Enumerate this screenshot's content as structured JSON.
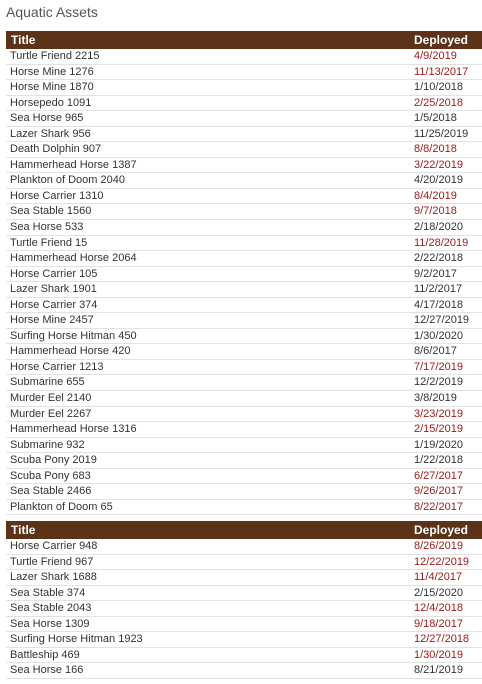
{
  "page": {
    "title": "Aquatic Assets"
  },
  "columns": {
    "title": "Title",
    "deployed": "Deployed"
  },
  "colors": {
    "header_bg": "#5c3319",
    "late_date": "#a01b1b",
    "normal_text": "#333333"
  },
  "group1": [
    {
      "title": "Turtle Friend 2215",
      "deployed": "4/9/2019",
      "late": true
    },
    {
      "title": "Horse Mine 1276",
      "deployed": "11/13/2017",
      "late": true
    },
    {
      "title": "Horse Mine 1870",
      "deployed": "1/10/2018",
      "late": false
    },
    {
      "title": "Horsepedo 1091",
      "deployed": "2/25/2018",
      "late": true
    },
    {
      "title": "Sea Horse 965",
      "deployed": "1/5/2018",
      "late": false
    },
    {
      "title": "Lazer Shark 956",
      "deployed": "11/25/2019",
      "late": false
    },
    {
      "title": "Death Dolphin 907",
      "deployed": "8/8/2018",
      "late": true
    },
    {
      "title": "Hammerhead Horse 1387",
      "deployed": "3/22/2019",
      "late": true
    },
    {
      "title": "Plankton of Doom 2040",
      "deployed": "4/20/2019",
      "late": false
    },
    {
      "title": "Horse Carrier 1310",
      "deployed": "8/4/2019",
      "late": true
    },
    {
      "title": "Sea Stable 1560",
      "deployed": "9/7/2018",
      "late": true
    },
    {
      "title": "Sea Horse 533",
      "deployed": "2/18/2020",
      "late": false
    },
    {
      "title": "Turtle Friend 15",
      "deployed": "11/28/2019",
      "late": true
    },
    {
      "title": "Hammerhead Horse 2064",
      "deployed": "2/22/2018",
      "late": false
    },
    {
      "title": "Horse Carrier 105",
      "deployed": "9/2/2017",
      "late": false
    },
    {
      "title": "Lazer Shark 1901",
      "deployed": "11/2/2017",
      "late": false
    },
    {
      "title": "Horse Carrier 374",
      "deployed": "4/17/2018",
      "late": false
    },
    {
      "title": "Horse Mine 2457",
      "deployed": "12/27/2019",
      "late": false
    },
    {
      "title": "Surfing Horse Hitman 450",
      "deployed": "1/30/2020",
      "late": false
    },
    {
      "title": "Hammerhead Horse 420",
      "deployed": "8/6/2017",
      "late": false
    },
    {
      "title": "Horse Carrier 1213",
      "deployed": "7/17/2019",
      "late": true
    },
    {
      "title": "Submarine 655",
      "deployed": "12/2/2019",
      "late": false
    },
    {
      "title": "Murder Eel 2140",
      "deployed": "3/8/2019",
      "late": false
    },
    {
      "title": "Murder Eel 2267",
      "deployed": "3/23/2019",
      "late": true
    },
    {
      "title": "Hammerhead Horse 1316",
      "deployed": "2/15/2019",
      "late": true
    },
    {
      "title": "Submarine 932",
      "deployed": "1/19/2020",
      "late": false
    },
    {
      "title": "Scuba Pony 2019",
      "deployed": "1/22/2018",
      "late": false
    },
    {
      "title": "Scuba Pony 683",
      "deployed": "6/27/2017",
      "late": true
    },
    {
      "title": "Sea Stable 2466",
      "deployed": "9/26/2017",
      "late": true
    },
    {
      "title": "Plankton of Doom 65",
      "deployed": "8/22/2017",
      "late": true
    }
  ],
  "group2": [
    {
      "title": "Horse Carrier 948",
      "deployed": "8/26/2019",
      "late": true
    },
    {
      "title": "Turtle Friend 967",
      "deployed": "12/22/2019",
      "late": true
    },
    {
      "title": "Lazer Shark 1688",
      "deployed": "11/4/2017",
      "late": true
    },
    {
      "title": "Sea Stable 374",
      "deployed": "2/15/2020",
      "late": false
    },
    {
      "title": "Sea Stable 2043",
      "deployed": "12/4/2018",
      "late": true
    },
    {
      "title": "Sea Horse 1309",
      "deployed": "9/18/2017",
      "late": true
    },
    {
      "title": "Surfing Horse Hitman 1923",
      "deployed": "12/27/2018",
      "late": true
    },
    {
      "title": "Battleship 469",
      "deployed": "1/30/2019",
      "late": true
    },
    {
      "title": "Sea Horse 166",
      "deployed": "8/21/2019",
      "late": false
    }
  ]
}
